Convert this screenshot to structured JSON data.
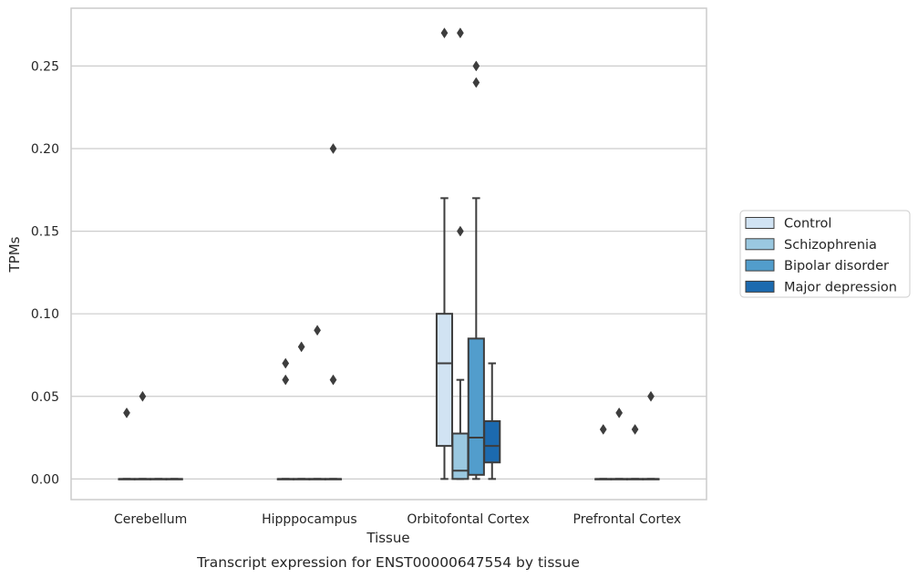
{
  "chart_data": {
    "type": "box",
    "caption": "Transcript expression for ENST00000647554 by tissue",
    "xlabel": "Tissue",
    "ylabel": "TPMs",
    "ylim": [
      -0.0125,
      0.285
    ],
    "yticks": [
      0.0,
      0.05,
      0.1,
      0.15,
      0.2,
      0.25
    ],
    "ytick_labels": [
      "0.00",
      "0.05",
      "0.10",
      "0.15",
      "0.20",
      "0.25"
    ],
    "categories": [
      "Cerebellum",
      "Hipppocampus",
      "Orbitofontal Cortex",
      "Prefrontal Cortex"
    ],
    "grid": true,
    "legend_position": "right",
    "series": [
      {
        "name": "Control",
        "color": "#d1e3f3",
        "boxes": [
          {
            "q1": 0,
            "median": 0,
            "q3": 0,
            "whisker_low": 0,
            "whisker_high": 0,
            "outliers": [
              0.04
            ]
          },
          {
            "q1": 0,
            "median": 0,
            "q3": 0,
            "whisker_low": 0,
            "whisker_high": 0,
            "outliers": [
              0.06,
              0.07
            ]
          },
          {
            "q1": 0.02,
            "median": 0.07,
            "q3": 0.1,
            "whisker_low": 0,
            "whisker_high": 0.17,
            "outliers": [
              0.27
            ]
          },
          {
            "q1": 0,
            "median": 0,
            "q3": 0,
            "whisker_low": 0,
            "whisker_high": 0,
            "outliers": [
              0.03
            ]
          }
        ]
      },
      {
        "name": "Schizophrenia",
        "color": "#9ac8e0",
        "boxes": [
          {
            "q1": 0,
            "median": 0,
            "q3": 0,
            "whisker_low": 0,
            "whisker_high": 0,
            "outliers": [
              0.05
            ]
          },
          {
            "q1": 0,
            "median": 0,
            "q3": 0,
            "whisker_low": 0,
            "whisker_high": 0,
            "outliers": [
              0.08
            ]
          },
          {
            "q1": 0,
            "median": 0.005,
            "q3": 0.0275,
            "whisker_low": 0,
            "whisker_high": 0.06,
            "outliers": [
              0.15,
              0.27
            ]
          },
          {
            "q1": 0,
            "median": 0,
            "q3": 0,
            "whisker_low": 0,
            "whisker_high": 0,
            "outliers": [
              0.04
            ]
          }
        ]
      },
      {
        "name": "Bipolar disorder",
        "color": "#529dcc",
        "boxes": [
          {
            "q1": 0,
            "median": 0,
            "q3": 0,
            "whisker_low": 0,
            "whisker_high": 0,
            "outliers": []
          },
          {
            "q1": 0,
            "median": 0,
            "q3": 0,
            "whisker_low": 0,
            "whisker_high": 0,
            "outliers": [
              0.09
            ]
          },
          {
            "q1": 0.0025,
            "median": 0.025,
            "q3": 0.085,
            "whisker_low": 0,
            "whisker_high": 0.17,
            "outliers": [
              0.24,
              0.25
            ]
          },
          {
            "q1": 0,
            "median": 0,
            "q3": 0,
            "whisker_low": 0,
            "whisker_high": 0,
            "outliers": [
              0.03
            ]
          }
        ]
      },
      {
        "name": "Major depression",
        "color": "#1c6aaf",
        "boxes": [
          {
            "q1": 0,
            "median": 0,
            "q3": 0,
            "whisker_low": 0,
            "whisker_high": 0,
            "outliers": []
          },
          {
            "q1": 0,
            "median": 0,
            "q3": 0,
            "whisker_low": 0,
            "whisker_high": 0,
            "outliers": [
              0.06,
              0.2
            ]
          },
          {
            "q1": 0.01,
            "median": 0.02,
            "q3": 0.035,
            "whisker_low": 0,
            "whisker_high": 0.07,
            "outliers": []
          },
          {
            "q1": 0,
            "median": 0,
            "q3": 0,
            "whisker_low": 0,
            "whisker_high": 0,
            "outliers": [
              0.05
            ]
          }
        ]
      }
    ]
  }
}
